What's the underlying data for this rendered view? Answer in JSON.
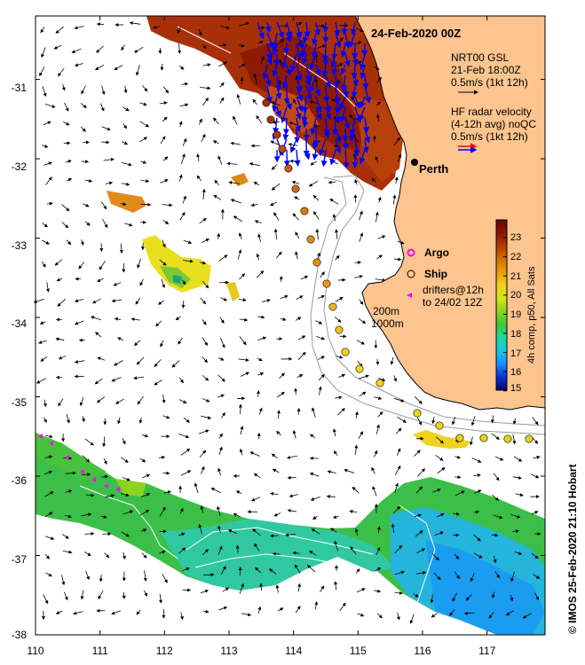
{
  "map": {
    "title": "24-Feb-2020 00Z",
    "lon_range": [
      110,
      117.9
    ],
    "lat_range": [
      -38,
      -30.2
    ],
    "x_ticks": [
      "110",
      "111",
      "112",
      "113",
      "114",
      "115",
      "116",
      "117"
    ],
    "y_ticks": [
      "-31",
      "-32",
      "-33",
      "-34",
      "-35",
      "-36",
      "-37",
      "-38"
    ],
    "land_color": "#fcc48e",
    "place": {
      "name": "Perth",
      "lon": 115.86,
      "lat": -31.95
    },
    "isobath_labels": [
      "200m",
      "1000m"
    ],
    "credit": "© IMOS 25-Feb-2020 21:10 Hobart"
  },
  "legend": {
    "model_label": "NRT00 GSL",
    "model_time": "21-Feb 18:00Z",
    "model_scale": "0.5m/s (1kt 12h)",
    "hf_label": "HF radar velocity",
    "hf_detail": "(4-12h avg) noQC",
    "hf_scale": "0.5m/s (1kt 12h)",
    "argo_label": "Argo",
    "ship_label": "Ship",
    "drifter_line1": "drifters@12h",
    "drifter_line2": "to 24/02 12Z",
    "arrow_colors": {
      "model": "#000000",
      "hf_top": "#ff0000",
      "hf_bottom": "#0000ff"
    },
    "argo_color": "#ff00ff",
    "drifter_color": "#ff00ff"
  },
  "colorbar": {
    "label": "4h comp, p50, All Sats",
    "ticks": [
      "23",
      "22",
      "21",
      "20",
      "19",
      "18",
      "17",
      "16",
      "15"
    ],
    "range": [
      15,
      23.8
    ],
    "stops": [
      "#08086a",
      "#0a2fd0",
      "#1a8cff",
      "#19c7e6",
      "#1ed7a0",
      "#3cc83c",
      "#8cd21e",
      "#d2e614",
      "#f0d21e",
      "#e6a00a",
      "#d26e00",
      "#b43c00",
      "#8c1400",
      "#6a0000"
    ]
  }
}
